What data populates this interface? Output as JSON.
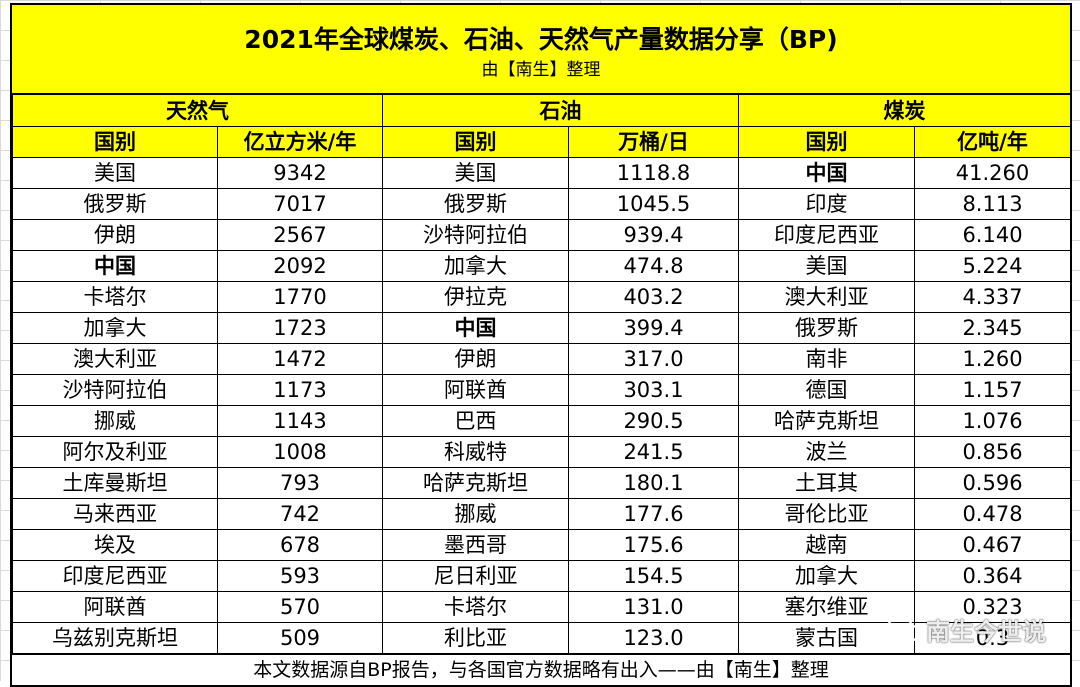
{
  "title": "2021年全球煤炭、石油、天然气产量数据分享（BP)",
  "subtitle": "由【南生】整理",
  "sections": [
    {
      "name": "天然气",
      "col1": "国别",
      "col2": "亿立方米/年"
    },
    {
      "name": "石油",
      "col1": "国别",
      "col2": "万桶/日"
    },
    {
      "name": "煤炭",
      "col1": "国别",
      "col2": "亿吨/年"
    }
  ],
  "rows": [
    [
      {
        "c": "美国",
        "v": "9342"
      },
      {
        "c": "美国",
        "v": "1118.8"
      },
      {
        "c": "中国",
        "v": "41.260",
        "b": true
      }
    ],
    [
      {
        "c": "俄罗斯",
        "v": "7017"
      },
      {
        "c": "俄罗斯",
        "v": "1045.5"
      },
      {
        "c": "印度",
        "v": "8.113"
      }
    ],
    [
      {
        "c": "伊朗",
        "v": "2567"
      },
      {
        "c": "沙特阿拉伯",
        "v": "939.4"
      },
      {
        "c": "印度尼西亚",
        "v": "6.140"
      }
    ],
    [
      {
        "c": "中国",
        "v": "2092",
        "b": true
      },
      {
        "c": "加拿大",
        "v": "474.8"
      },
      {
        "c": "美国",
        "v": "5.224"
      }
    ],
    [
      {
        "c": "卡塔尔",
        "v": "1770"
      },
      {
        "c": "伊拉克",
        "v": "403.2"
      },
      {
        "c": "澳大利亚",
        "v": "4.337"
      }
    ],
    [
      {
        "c": "加拿大",
        "v": "1723"
      },
      {
        "c": "中国",
        "v": "399.4",
        "b": true
      },
      {
        "c": "俄罗斯",
        "v": "2.345"
      }
    ],
    [
      {
        "c": "澳大利亚",
        "v": "1472"
      },
      {
        "c": "伊朗",
        "v": "317.0"
      },
      {
        "c": "南非",
        "v": "1.260"
      }
    ],
    [
      {
        "c": "沙特阿拉伯",
        "v": "1173"
      },
      {
        "c": "阿联酋",
        "v": "303.1"
      },
      {
        "c": "德国",
        "v": "1.157"
      }
    ],
    [
      {
        "c": "挪威",
        "v": "1143"
      },
      {
        "c": "巴西",
        "v": "290.5"
      },
      {
        "c": "哈萨克斯坦",
        "v": "1.076"
      }
    ],
    [
      {
        "c": "阿尔及利亚",
        "v": "1008"
      },
      {
        "c": "科威特",
        "v": "241.5"
      },
      {
        "c": "波兰",
        "v": "0.856"
      }
    ],
    [
      {
        "c": "土库曼斯坦",
        "v": "793"
      },
      {
        "c": "哈萨克斯坦",
        "v": "180.1"
      },
      {
        "c": "土耳其",
        "v": "0.596"
      }
    ],
    [
      {
        "c": "马来西亚",
        "v": "742"
      },
      {
        "c": "挪威",
        "v": "177.6"
      },
      {
        "c": "哥伦比亚",
        "v": "0.478"
      }
    ],
    [
      {
        "c": "埃及",
        "v": "678"
      },
      {
        "c": "墨西哥",
        "v": "175.6"
      },
      {
        "c": "越南",
        "v": "0.467"
      }
    ],
    [
      {
        "c": "印度尼西亚",
        "v": "593"
      },
      {
        "c": "尼日利亚",
        "v": "154.5"
      },
      {
        "c": "加拿大",
        "v": "0.364"
      }
    ],
    [
      {
        "c": "阿联酋",
        "v": "570"
      },
      {
        "c": "卡塔尔",
        "v": "131.0"
      },
      {
        "c": "塞尔维亚",
        "v": "0.323"
      }
    ],
    [
      {
        "c": "乌兹别克斯坦",
        "v": "509"
      },
      {
        "c": "利比亚",
        "v": "123.0"
      },
      {
        "c": "蒙古国",
        "v": "0.3"
      }
    ]
  ],
  "footnote": "本文数据源自BP报告，与各国官方数据略有出入——由【南生】整理",
  "watermark": {
    "text": "南生今世说",
    "icon": "wechat-icon"
  },
  "colors": {
    "header_fill": "#ffff00",
    "border": "#000000",
    "gridline": "#d9d9d9"
  }
}
